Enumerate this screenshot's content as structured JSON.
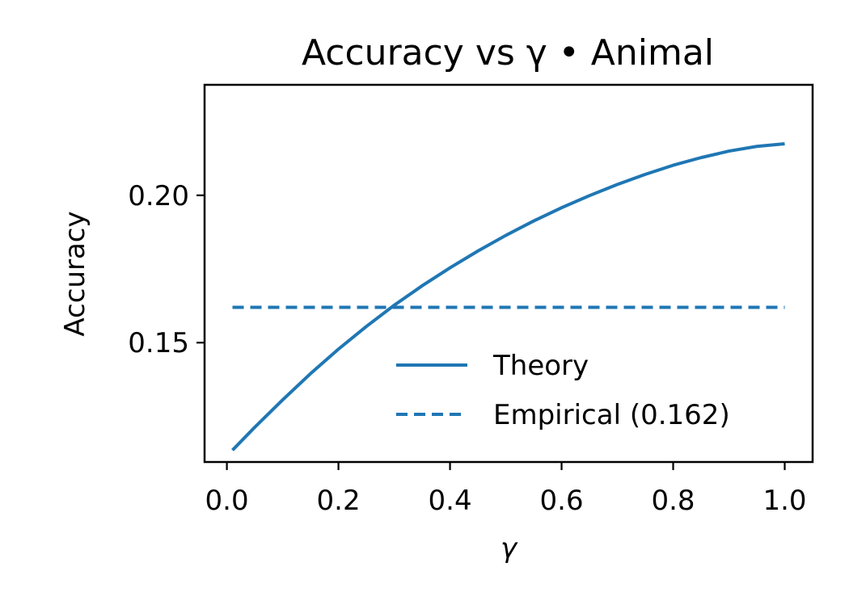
{
  "chart_data": {
    "type": "line",
    "title": "Accuracy vs γ • Animal",
    "xlabel": "γ",
    "ylabel": "Accuracy",
    "xlim": [
      -0.04,
      1.05
    ],
    "ylim": [
      0.1095,
      0.2375
    ],
    "xticks": [
      0.0,
      0.2,
      0.4,
      0.6,
      0.8,
      1.0
    ],
    "xtick_labels": [
      "0.0",
      "0.2",
      "0.4",
      "0.6",
      "0.8",
      "1.0"
    ],
    "yticks": [
      0.15,
      0.2
    ],
    "ytick_labels": [
      "0.15",
      "0.20"
    ],
    "grid": false,
    "legend_position": "lower-right",
    "series": [
      {
        "name": "Theory",
        "style": "solid",
        "color": "#1f77b4",
        "x": [
          0.01,
          0.05,
          0.1,
          0.15,
          0.2,
          0.25,
          0.3,
          0.35,
          0.4,
          0.45,
          0.5,
          0.55,
          0.6,
          0.65,
          0.7,
          0.75,
          0.8,
          0.85,
          0.9,
          0.95,
          1.0
        ],
        "y": [
          0.1135,
          0.1213,
          0.1306,
          0.1395,
          0.1478,
          0.1555,
          0.1627,
          0.1693,
          0.1754,
          0.1811,
          0.1864,
          0.1913,
          0.1958,
          0.1999,
          0.2037,
          0.2071,
          0.2102,
          0.2128,
          0.215,
          0.2166,
          0.2175
        ]
      },
      {
        "name": "Empirical (0.162)",
        "style": "dashed",
        "color": "#1f77b4",
        "x": [
          0.01,
          1.0
        ],
        "y": [
          0.162,
          0.162
        ]
      }
    ]
  }
}
